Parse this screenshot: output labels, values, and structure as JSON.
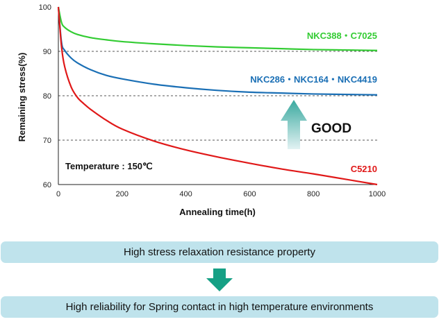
{
  "chart_data": {
    "type": "line",
    "xlabel": "Annealing time(h)",
    "ylabel": "Remaining stress(%)",
    "xlim": [
      0,
      1000
    ],
    "ylim": [
      60,
      100
    ],
    "xticks": [
      0,
      200,
      400,
      600,
      800,
      1000
    ],
    "yticks": [
      60,
      70,
      80,
      90,
      100
    ],
    "grid": "horizontal dashed at 70, 80, 90",
    "annotation": "Temperature : 150℃",
    "good_label": "GOOD",
    "series": [
      {
        "name": "NKC388・C7025",
        "color": "#33cc33",
        "x": [
          0,
          10,
          20,
          40,
          60,
          100,
          150,
          200,
          300,
          400,
          500,
          600,
          700,
          800,
          900,
          1000
        ],
        "y": [
          100,
          96.5,
          95.4,
          94.4,
          93.8,
          93.1,
          92.6,
          92.2,
          91.7,
          91.3,
          91.0,
          90.8,
          90.6,
          90.4,
          90.3,
          90.2
        ]
      },
      {
        "name": "NKC286・NKC164・NKC4419",
        "color": "#1a6fb5",
        "x": [
          0,
          10,
          20,
          40,
          60,
          100,
          150,
          200,
          300,
          400,
          500,
          600,
          700,
          800,
          900,
          1000
        ],
        "y": [
          100,
          92.0,
          90.2,
          88.5,
          87.4,
          85.9,
          84.6,
          83.8,
          82.6,
          81.8,
          81.2,
          80.8,
          80.6,
          80.4,
          80.3,
          80.2
        ]
      },
      {
        "name": "C5210",
        "color": "#e01818",
        "x": [
          0,
          10,
          20,
          40,
          60,
          80,
          100,
          150,
          200,
          300,
          400,
          500,
          600,
          700,
          800,
          900,
          1000
        ],
        "y": [
          100,
          91.0,
          86.5,
          82.0,
          79.6,
          78.2,
          77.0,
          74.5,
          72.5,
          69.8,
          67.8,
          66.2,
          64.8,
          63.5,
          62.4,
          61.2,
          60.0
        ]
      }
    ]
  },
  "box1_text": "High stress relaxation resistance property",
  "box2_text": "High reliability for Spring contact in high temperature environments"
}
